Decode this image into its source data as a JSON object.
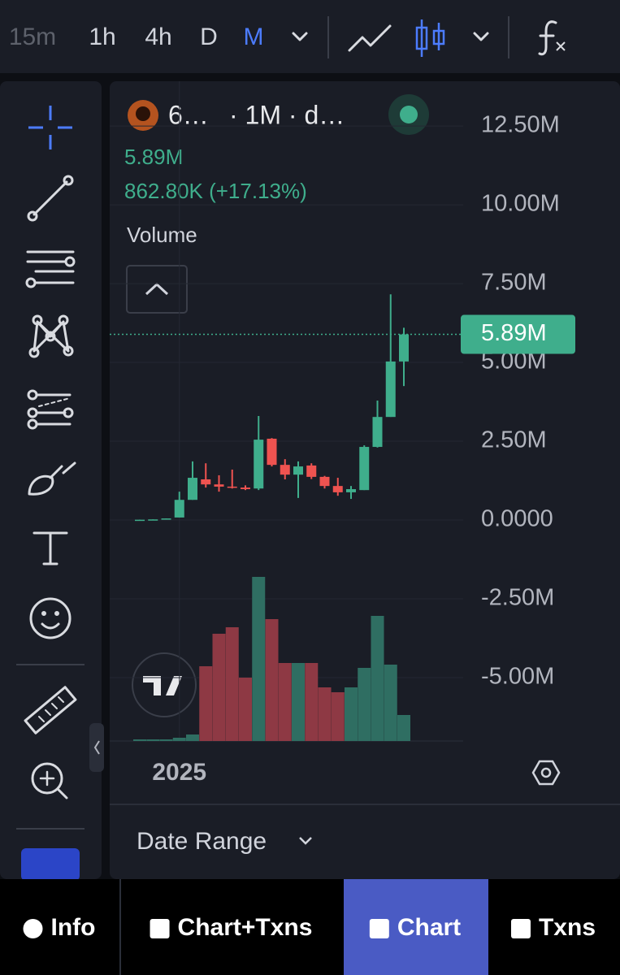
{
  "toolbar": {
    "intervals": [
      "15m",
      "1h",
      "4h",
      "D",
      "M"
    ],
    "active_interval": "M"
  },
  "header": {
    "symbol": "6…",
    "details": "· 1M · d…",
    "price": "5.89M",
    "change": "862.80K (+17.13%)",
    "study": "Volume"
  },
  "chart_data": {
    "type": "candlestick",
    "categories": [
      null,
      null,
      null,
      "2025",
      null,
      null,
      null,
      null,
      null,
      null,
      null,
      null,
      null,
      null,
      null,
      null,
      null,
      null,
      null,
      null,
      null
    ],
    "open": [
      0,
      10000,
      20000,
      80000,
      640000,
      1290000,
      1130000,
      1060000,
      1030000,
      1000000,
      2580000,
      1750000,
      1440000,
      1730000,
      1370000,
      1080000,
      880000,
      950000,
      2320000,
      3270000,
      5030000
    ],
    "high": [
      10000,
      20000,
      50000,
      900000,
      1860000,
      1800000,
      1420000,
      1600000,
      1100000,
      3300000,
      2600000,
      1930000,
      1860000,
      1800000,
      1400000,
      1340000,
      1080000,
      2370000,
      3790000,
      7160000,
      6100000
    ],
    "low": [
      0,
      10000,
      20000,
      80000,
      640000,
      1030000,
      900000,
      1000000,
      950000,
      950000,
      1700000,
      1290000,
      700000,
      1300000,
      1000000,
      770000,
      670000,
      950000,
      2300000,
      3270000,
      4250000
    ],
    "close": [
      10000,
      20000,
      50000,
      640000,
      1340000,
      1130000,
      1060000,
      1030000,
      980000,
      2550000,
      1750000,
      1440000,
      1700000,
      1370000,
      1080000,
      880000,
      980000,
      2320000,
      3270000,
      5030000,
      5890000
    ],
    "volume": [
      2,
      2,
      2,
      4,
      8,
      92,
      132,
      140,
      78,
      202,
      150,
      96,
      96,
      96,
      66,
      60,
      66,
      90,
      154,
      94,
      32
    ],
    "up_color": "#3fae8c",
    "down_color": "#ef5350",
    "volume_up_color": "#2f6e62",
    "volume_down_color": "#8e3944",
    "ylim": [
      -7010000,
      13920000
    ],
    "yticks": [
      {
        "value": 12500000,
        "label": "12.50M"
      },
      {
        "value": 10000000,
        "label": "10.00M"
      },
      {
        "value": 7500000,
        "label": "7.50M"
      },
      {
        "value": 5000000,
        "label": "5.00M"
      },
      {
        "value": 2500000,
        "label": "2.50M"
      },
      {
        "value": 0,
        "label": "0.0000"
      },
      {
        "value": -2500000,
        "label": "-2.50M"
      },
      {
        "value": -5000000,
        "label": "-5.00M"
      }
    ],
    "price_line": {
      "value": 5890000,
      "label": "5.89M"
    },
    "grid": true
  },
  "footer": {
    "date_range": "Date Range"
  },
  "nav": {
    "items": [
      "Info",
      "Chart+Txns",
      "Chart",
      "Txns"
    ],
    "active": "Chart"
  }
}
